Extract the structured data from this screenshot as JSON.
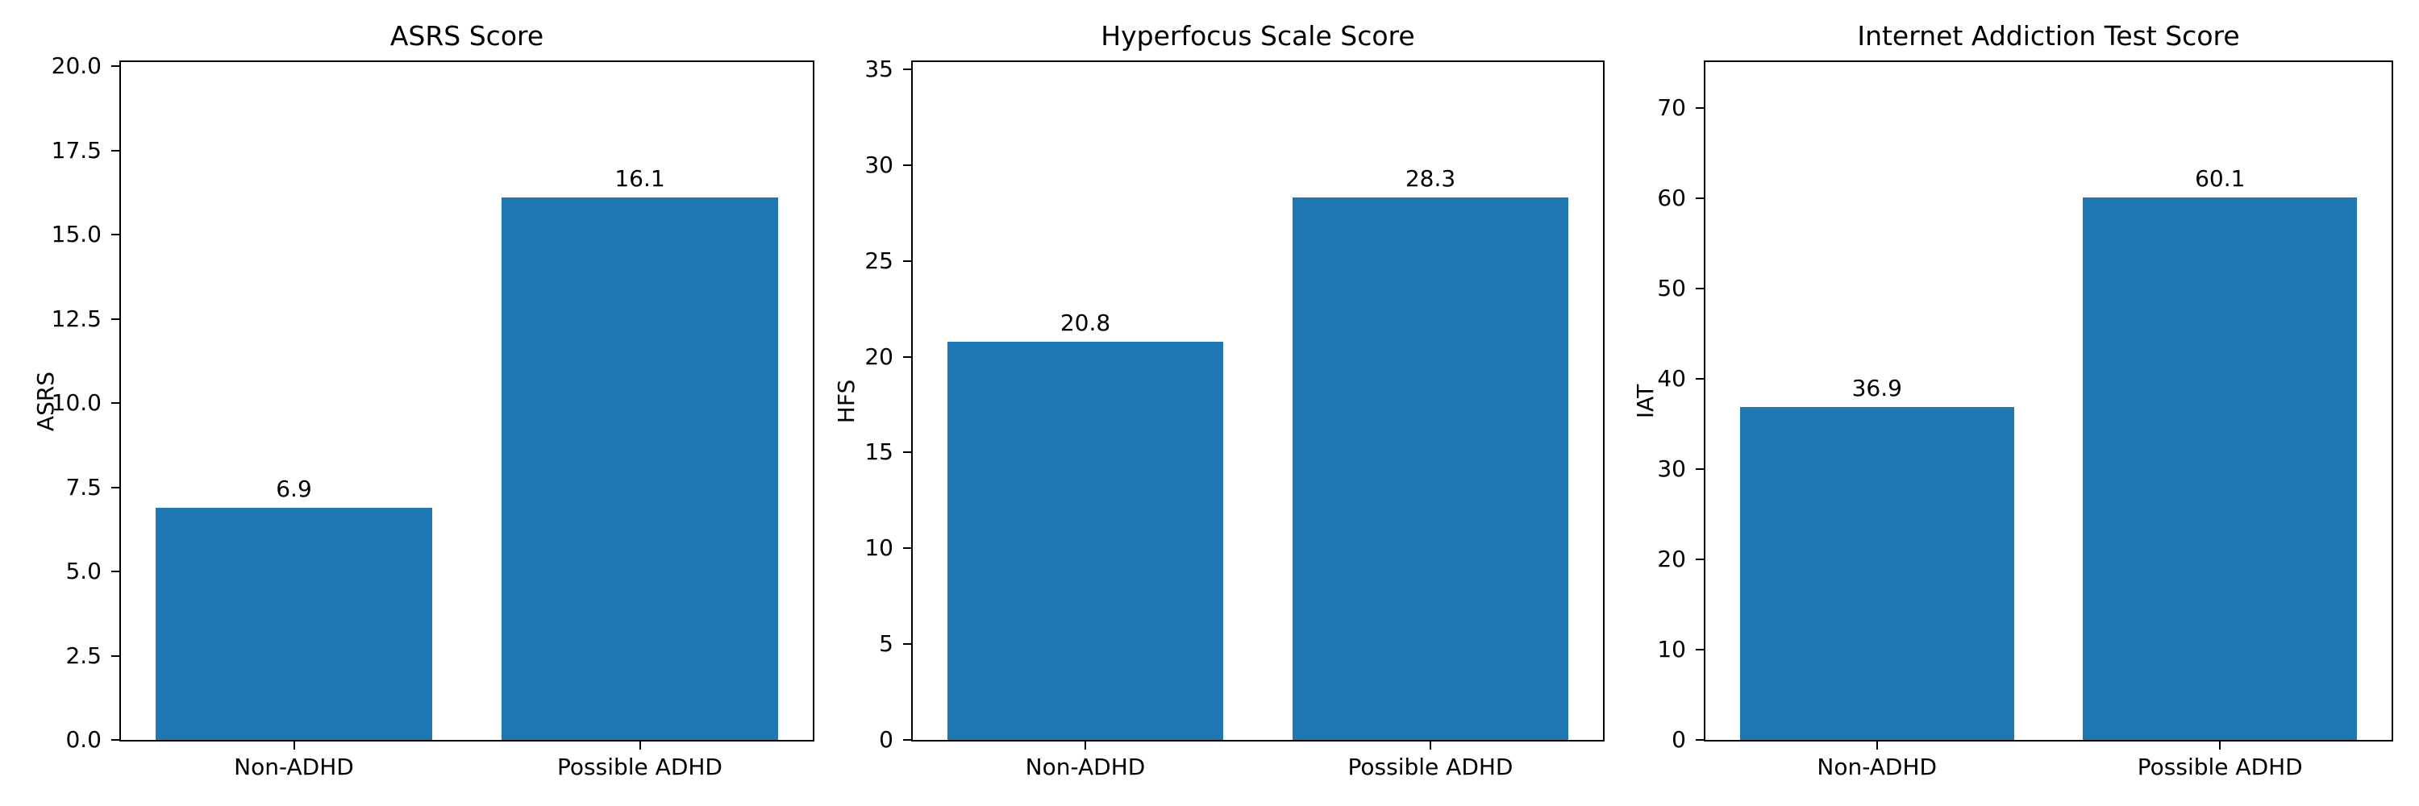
{
  "figure": {
    "background": "#ffffff",
    "text_color": "#000000",
    "spine_color": "#000000"
  },
  "chart_data": [
    {
      "type": "bar",
      "title": "ASRS Score",
      "xlabel": "",
      "ylabel": "ASRS",
      "categories": [
        "Non-ADHD",
        "Possible ADHD"
      ],
      "values": [
        6.9,
        16.1
      ],
      "bar_labels": [
        "6.9",
        "16.1"
      ],
      "bar_color": "#1f77b4",
      "ylim": [
        0,
        20.125
      ],
      "ytick_values": [
        0,
        2.5,
        5,
        7.5,
        10,
        12.5,
        15,
        17.5,
        20
      ],
      "ytick_labels": [
        "0.0",
        "2.5",
        "5.0",
        "7.5",
        "10.0",
        "12.5",
        "15.0",
        "17.5",
        "20.0"
      ],
      "grid": false,
      "legend": null
    },
    {
      "type": "bar",
      "title": "Hyperfocus Scale Score",
      "xlabel": "",
      "ylabel": "HFS",
      "categories": [
        "Non-ADHD",
        "Possible ADHD"
      ],
      "values": [
        20.8,
        28.3
      ],
      "bar_labels": [
        "20.8",
        "28.3"
      ],
      "bar_color": "#1f77b4",
      "ylim": [
        0,
        35.375
      ],
      "ytick_values": [
        0,
        5,
        10,
        15,
        20,
        25,
        30,
        35
      ],
      "ytick_labels": [
        "0",
        "5",
        "10",
        "15",
        "20",
        "25",
        "30",
        "35"
      ],
      "grid": false,
      "legend": null
    },
    {
      "type": "bar",
      "title": "Internet Addiction Test Score",
      "xlabel": "",
      "ylabel": "IAT",
      "categories": [
        "Non-ADHD",
        "Possible ADHD"
      ],
      "values": [
        36.9,
        60.1
      ],
      "bar_labels": [
        "36.9",
        "60.1"
      ],
      "bar_color": "#1f77b4",
      "ylim": [
        0,
        75.125
      ],
      "ytick_values": [
        0,
        10,
        20,
        30,
        40,
        50,
        60,
        70
      ],
      "ytick_labels": [
        "0",
        "10",
        "20",
        "30",
        "40",
        "50",
        "60",
        "70"
      ],
      "grid": false,
      "legend": null
    }
  ]
}
